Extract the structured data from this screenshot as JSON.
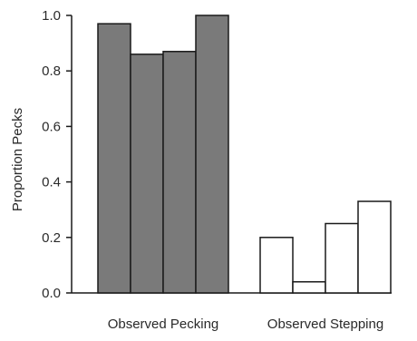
{
  "chart_data": {
    "type": "bar",
    "title": "",
    "xlabel": "",
    "ylabel": "Proportion Pecks",
    "ylim": [
      0,
      1.0
    ],
    "yticks": [
      "0.0",
      "0.2",
      "0.4",
      "0.6",
      "0.8",
      "1.0"
    ],
    "categories": [
      "Observed Pecking",
      "Observed Stepping"
    ],
    "groups": [
      {
        "label": "Observed Pecking",
        "fill": "#7a7a7a",
        "values": [
          0.97,
          0.86,
          0.87,
          1.0
        ]
      },
      {
        "label": "Observed Stepping",
        "fill": "#ffffff",
        "values": [
          0.2,
          0.04,
          0.25,
          0.33
        ]
      }
    ],
    "bar_stroke": "#1a1a1a",
    "grid": false,
    "legend": "none"
  }
}
